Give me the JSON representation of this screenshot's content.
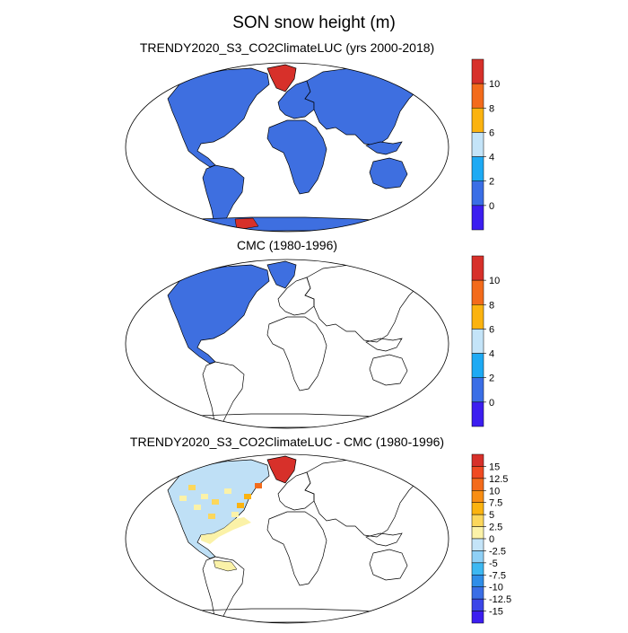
{
  "figure": {
    "title": "SON snow height (m)"
  },
  "colors": {
    "land_base": "#3e6fe0",
    "greenland": "#d7302a",
    "antarctic_high": "#d7302a",
    "coast": "#000000",
    "map_border": "#000000"
  },
  "panels": [
    {
      "title": "TRENDY2020_S3_CO2ClimateLUC (yrs 2000-2018)",
      "coverage": "global",
      "colorbar": {
        "ticks": [
          "0",
          "2",
          "4",
          "6",
          "8",
          "10"
        ],
        "colors": [
          "#3c1ef0",
          "#3a6ee6",
          "#1eaaf4",
          "#c4e4f8",
          "#fbb310",
          "#f36b1b",
          "#d7302a"
        ]
      }
    },
    {
      "title": "CMC (1980-1996)",
      "coverage": "north-america",
      "colorbar": {
        "ticks": [
          "0",
          "2",
          "4",
          "6",
          "8",
          "10"
        ],
        "colors": [
          "#3c1ef0",
          "#3a6ee6",
          "#1eaaf4",
          "#c4e4f8",
          "#fbb310",
          "#f36b1b",
          "#d7302a"
        ]
      }
    },
    {
      "title": "TRENDY2020_S3_CO2ClimateLUC - CMC (1980-1996)",
      "coverage": "difference",
      "colorbar": {
        "ticks": [
          "15",
          "12.5",
          "10",
          "7.5",
          "5",
          "2.5",
          "0",
          "-2.5",
          "-5",
          "-7.5",
          "-10",
          "-12.5",
          "-15"
        ],
        "colors": [
          "#d7302a",
          "#f04a22",
          "#f36b1b",
          "#f88e14",
          "#fbb310",
          "#fcd75c",
          "#fbf2a8",
          "#c4e4f8",
          "#8fd0f6",
          "#3db8f2",
          "#2f8ee8",
          "#3a6ee6",
          "#3b46e8",
          "#3c1ef0"
        ]
      }
    }
  ]
}
